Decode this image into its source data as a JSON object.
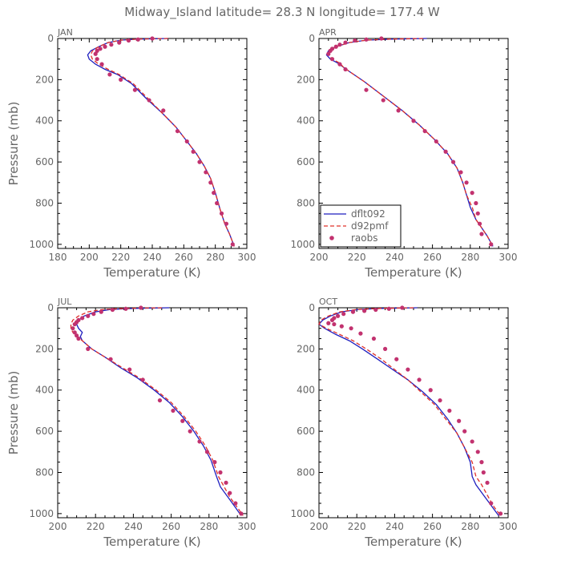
{
  "title": "Midway_Island   latitude= 28.3 N longitude= 177.4 W",
  "legend": [
    {
      "label": "dflt092",
      "style": "solid",
      "color": "#1f1fbf"
    },
    {
      "label": "d92pmf",
      "style": "dashed",
      "color": "#e0302a"
    },
    {
      "label": "raobs",
      "style": "points",
      "color": "#c2326f"
    }
  ],
  "colors": {
    "model": "#1f1fbf",
    "pmf": "#e0302a",
    "obs": "#c2326f",
    "axes": "#000000",
    "text": "#666666"
  },
  "chart_data": [
    {
      "type": "line",
      "panel": "JAN",
      "xlabel": "Temperature (K)",
      "ylabel": "Pressure (mb)",
      "xlim": [
        180,
        300
      ],
      "ylim": [
        1020,
        0
      ],
      "y_inverted": true,
      "xticks": [
        180,
        200,
        220,
        240,
        260,
        280,
        300
      ],
      "yticks": [
        0,
        200,
        400,
        600,
        800,
        1000
      ],
      "series": [
        {
          "name": "dflt092",
          "x": [
            250,
            230,
            220,
            212,
            206,
            201,
            199,
            200,
            204,
            210,
            218,
            227,
            236,
            246,
            255,
            262,
            268,
            273,
            277,
            280,
            283,
            286,
            289,
            292
          ],
          "y": [
            0,
            3,
            8,
            20,
            40,
            60,
            80,
            100,
            125,
            150,
            175,
            220,
            290,
            360,
            430,
            500,
            560,
            620,
            680,
            750,
            830,
            900,
            950,
            1010
          ]
        },
        {
          "name": "d92pmf",
          "x": [
            250,
            230,
            220,
            212,
            206,
            202,
            201,
            202,
            206,
            212,
            219,
            228,
            237,
            246,
            255,
            262,
            268,
            273,
            277,
            280,
            283,
            286,
            289,
            292
          ],
          "y": [
            0,
            3,
            8,
            20,
            40,
            60,
            80,
            100,
            125,
            150,
            175,
            220,
            290,
            360,
            430,
            500,
            560,
            620,
            680,
            750,
            830,
            900,
            950,
            1010
          ]
        },
        {
          "name": "raobs",
          "x": [
            240,
            231,
            225,
            219,
            214,
            210,
            207,
            205,
            204,
            205,
            208,
            213,
            220,
            229,
            238,
            247,
            256,
            262,
            266,
            270,
            274,
            277,
            279,
            281,
            284,
            287,
            291
          ],
          "y": [
            0,
            5,
            10,
            20,
            30,
            40,
            50,
            60,
            75,
            100,
            125,
            175,
            200,
            250,
            300,
            350,
            450,
            500,
            550,
            600,
            650,
            700,
            750,
            800,
            850,
            900,
            1000
          ]
        }
      ]
    },
    {
      "type": "line",
      "panel": "APR",
      "xlabel": "Temperature (K)",
      "ylabel": "",
      "xlim": [
        200,
        300
      ],
      "ylim": [
        1020,
        0
      ],
      "y_inverted": true,
      "xticks": [
        200,
        220,
        240,
        260,
        280,
        300
      ],
      "yticks": [
        0,
        200,
        400,
        600,
        800,
        1000
      ],
      "legend_position": "lower-left",
      "series": [
        {
          "name": "dflt092",
          "x": [
            257,
            238,
            225,
            216,
            209,
            205,
            204,
            206,
            210,
            213,
            216,
            224,
            234,
            244,
            253,
            261,
            268,
            273,
            276,
            278,
            280,
            283,
            286,
            289,
            292
          ],
          "y": [
            0,
            3,
            8,
            20,
            40,
            60,
            80,
            100,
            120,
            140,
            160,
            210,
            280,
            350,
            420,
            490,
            560,
            630,
            700,
            760,
            820,
            880,
            920,
            960,
            1010
          ]
        },
        {
          "name": "d92pmf",
          "x": [
            255,
            237,
            225,
            216,
            209,
            206,
            205,
            207,
            211,
            213,
            216,
            224,
            234,
            244,
            253,
            261,
            268,
            273,
            276,
            278,
            281,
            283,
            286,
            289,
            292
          ],
          "y": [
            0,
            3,
            8,
            20,
            40,
            60,
            80,
            100,
            120,
            140,
            160,
            210,
            280,
            350,
            420,
            490,
            560,
            630,
            700,
            760,
            820,
            880,
            920,
            960,
            1010
          ]
        },
        {
          "name": "raobs",
          "x": [
            233,
            225,
            219,
            214,
            211,
            209,
            207,
            206,
            205,
            207,
            211,
            214,
            225,
            234,
            242,
            250,
            256,
            262,
            267,
            271,
            275,
            278,
            281,
            283,
            284,
            285,
            286,
            291
          ],
          "y": [
            0,
            5,
            10,
            20,
            30,
            40,
            50,
            60,
            75,
            100,
            125,
            150,
            250,
            300,
            350,
            400,
            450,
            500,
            550,
            600,
            650,
            700,
            750,
            800,
            850,
            900,
            950,
            1000
          ]
        }
      ]
    },
    {
      "type": "line",
      "panel": "JUL",
      "xlabel": "Temperature (K)",
      "ylabel": "Pressure (mb)",
      "xlim": [
        200,
        300
      ],
      "ylim": [
        1020,
        0
      ],
      "y_inverted": true,
      "xticks": [
        200,
        220,
        240,
        260,
        280,
        300
      ],
      "yticks": [
        0,
        200,
        400,
        600,
        800,
        1000
      ],
      "series": [
        {
          "name": "dflt092",
          "x": [
            259,
            240,
            228,
            220,
            214,
            211,
            210,
            211,
            213,
            212,
            213,
            218,
            225,
            233,
            242,
            251,
            259,
            266,
            272,
            277,
            281,
            284,
            286,
            290,
            294,
            297
          ],
          "y": [
            0,
            3,
            8,
            20,
            40,
            60,
            80,
            100,
            120,
            140,
            160,
            200,
            240,
            290,
            340,
            400,
            460,
            530,
            600,
            670,
            740,
            820,
            870,
            920,
            970,
            1010
          ]
        },
        {
          "name": "d92pmf",
          "x": [
            255,
            236,
            224,
            216,
            211,
            208,
            207,
            207,
            208,
            210,
            213,
            218,
            225,
            234,
            243,
            252,
            260,
            267,
            273,
            278,
            282,
            285,
            288,
            291,
            295,
            298
          ],
          "y": [
            0,
            3,
            8,
            20,
            40,
            60,
            80,
            100,
            120,
            140,
            160,
            200,
            240,
            290,
            340,
            400,
            460,
            530,
            600,
            670,
            740,
            820,
            870,
            920,
            970,
            1010
          ]
        },
        {
          "name": "raobs",
          "x": [
            244,
            236,
            229,
            223,
            219,
            216,
            213,
            211,
            210,
            209,
            208,
            209,
            210,
            211,
            216,
            228,
            238,
            245,
            254,
            261,
            266,
            270,
            275,
            279,
            283,
            286,
            289,
            291,
            294,
            297
          ],
          "y": [
            0,
            5,
            10,
            20,
            30,
            40,
            50,
            60,
            70,
            80,
            100,
            120,
            135,
            150,
            200,
            250,
            300,
            350,
            450,
            500,
            550,
            600,
            650,
            700,
            750,
            800,
            850,
            900,
            950,
            1000
          ]
        }
      ]
    },
    {
      "type": "line",
      "panel": "OCT",
      "xlabel": "Temperature (K)",
      "ylabel": "",
      "xlim": [
        200,
        300
      ],
      "ylim": [
        1020,
        0
      ],
      "y_inverted": true,
      "xticks": [
        200,
        220,
        240,
        260,
        280,
        300
      ],
      "yticks": [
        0,
        200,
        400,
        600,
        800,
        1000
      ],
      "series": [
        {
          "name": "dflt092",
          "x": [
            252,
            233,
            221,
            212,
            206,
            202,
            200,
            203,
            209,
            216,
            223,
            231,
            239,
            247,
            255,
            262,
            268,
            273,
            277,
            280,
            281,
            283,
            287,
            291,
            295
          ],
          "y": [
            0,
            3,
            8,
            20,
            40,
            60,
            80,
            100,
            130,
            160,
            200,
            250,
            300,
            350,
            410,
            470,
            540,
            610,
            680,
            750,
            820,
            860,
            910,
            960,
            1010
          ]
        },
        {
          "name": "d92pmf",
          "x": [
            250,
            232,
            220,
            211,
            205,
            201,
            200,
            204,
            211,
            218,
            225,
            233,
            240,
            247,
            254,
            261,
            267,
            273,
            277,
            281,
            283,
            286,
            289,
            292,
            296
          ],
          "y": [
            0,
            3,
            8,
            20,
            40,
            60,
            80,
            100,
            130,
            160,
            200,
            250,
            300,
            350,
            410,
            470,
            540,
            610,
            680,
            750,
            820,
            860,
            910,
            960,
            1010
          ]
        },
        {
          "name": "raobs",
          "x": [
            244,
            237,
            230,
            224,
            218,
            213,
            210,
            208,
            207,
            205,
            208,
            212,
            217,
            222,
            229,
            235,
            241,
            247,
            253,
            259,
            264,
            269,
            274,
            277,
            281,
            284,
            286,
            287,
            289,
            291,
            296
          ],
          "y": [
            0,
            5,
            10,
            15,
            20,
            30,
            40,
            50,
            60,
            75,
            80,
            90,
            100,
            125,
            150,
            200,
            250,
            300,
            350,
            400,
            450,
            500,
            550,
            600,
            650,
            700,
            750,
            800,
            850,
            950,
            1000
          ]
        }
      ]
    }
  ]
}
